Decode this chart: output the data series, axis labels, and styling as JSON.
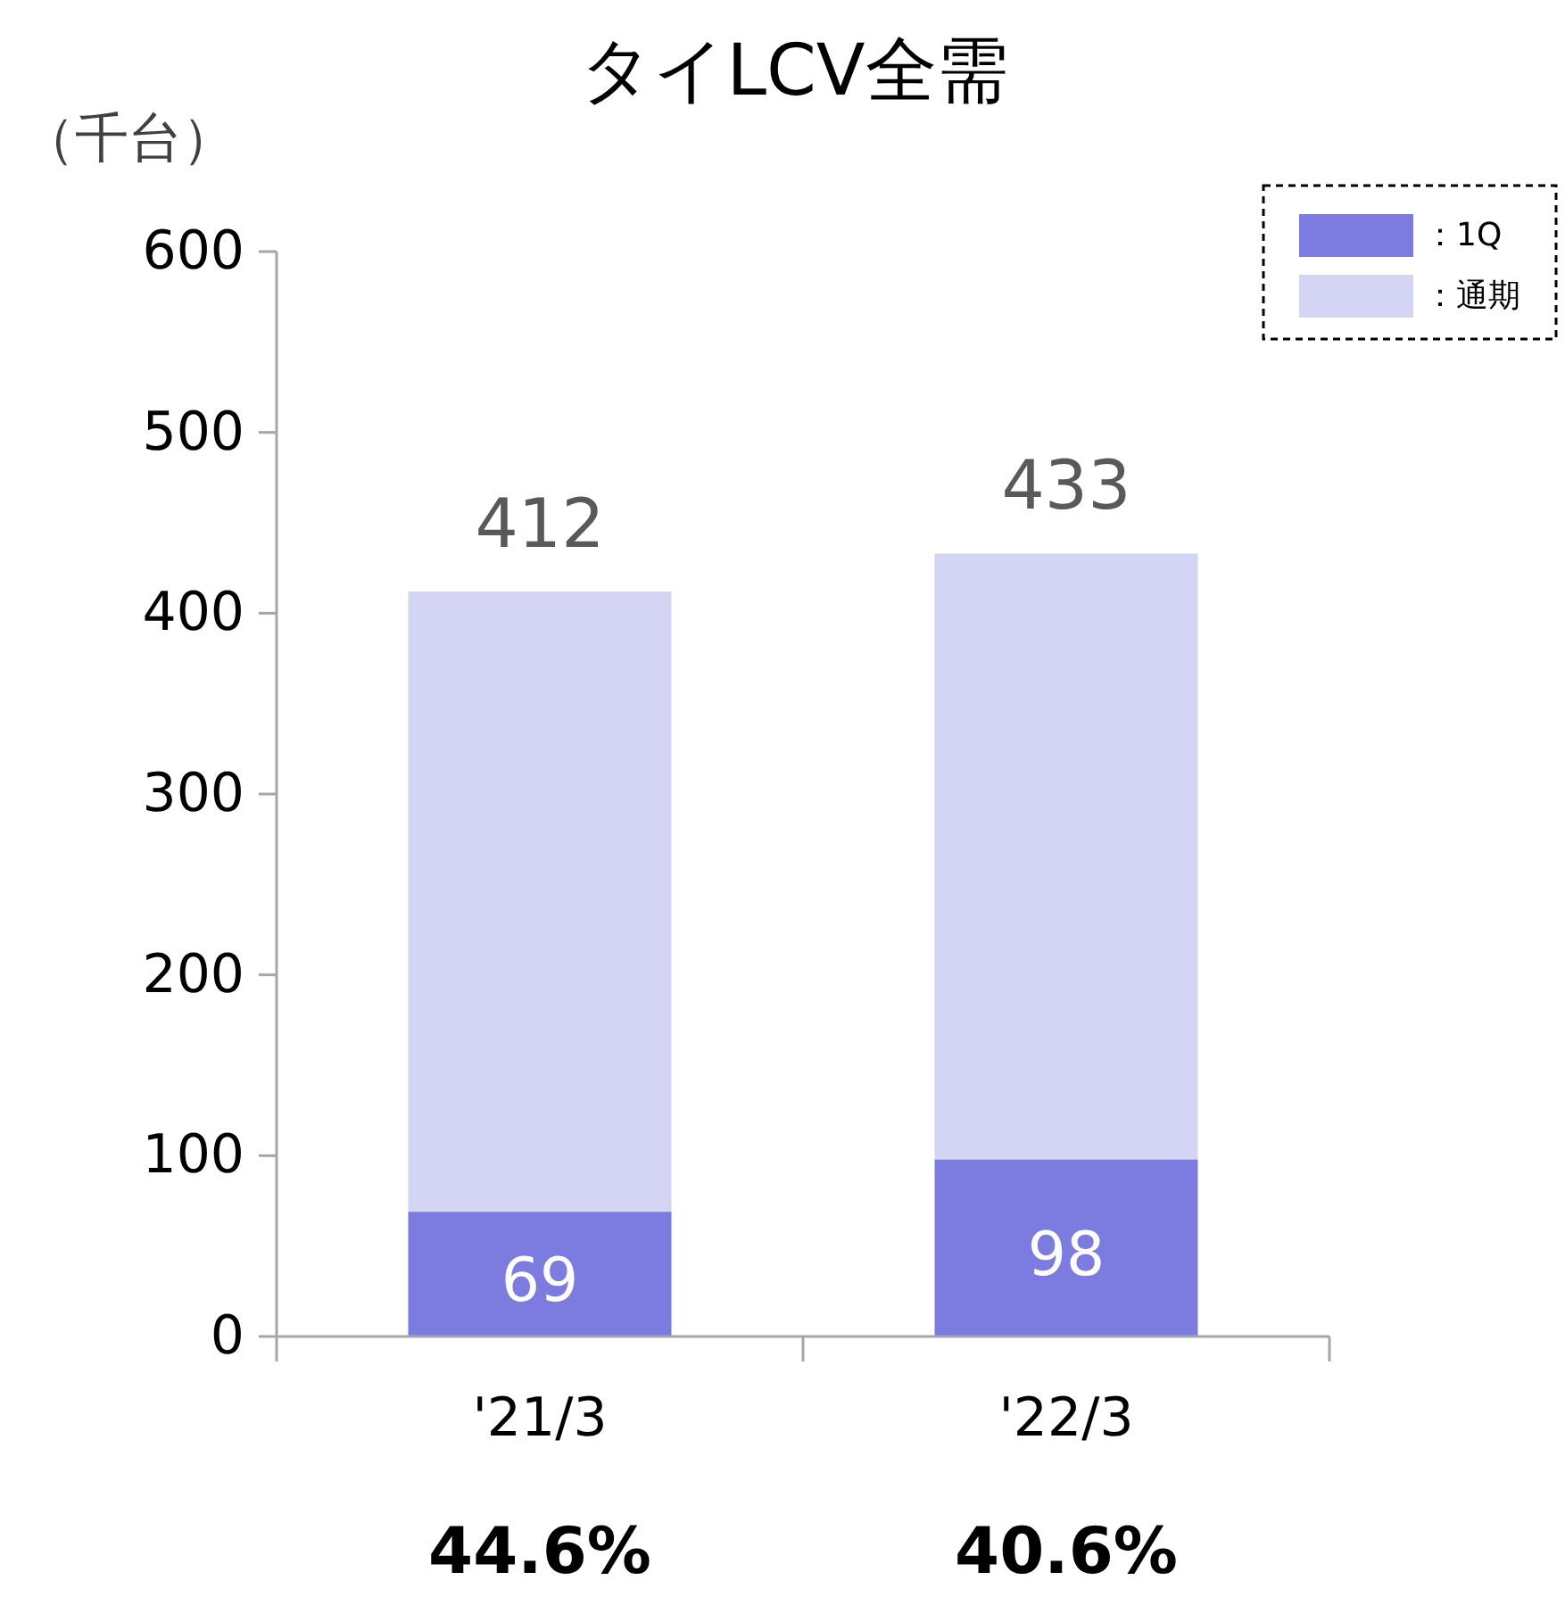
{
  "chart_data": {
    "type": "bar",
    "title": "タイLCV全需",
    "ylabel": "（千台）",
    "categories": [
      "'21/3",
      "'22/3"
    ],
    "stacked": true,
    "ylim": [
      0,
      600
    ],
    "yticks": [
      0,
      100,
      200,
      300,
      400,
      500,
      600
    ],
    "legend": "top right",
    "grid": false,
    "series": [
      {
        "name": "：1Q",
        "color": "#7b7be0",
        "values": [
          69,
          98
        ],
        "value_labels": [
          "69",
          "98"
        ]
      },
      {
        "name": "：通期",
        "color": "#d4d4f4",
        "values": [
          343,
          335
        ]
      }
    ],
    "totals": [
      "412",
      "433"
    ],
    "annotations": [
      "44.6%",
      "40.6%"
    ]
  }
}
